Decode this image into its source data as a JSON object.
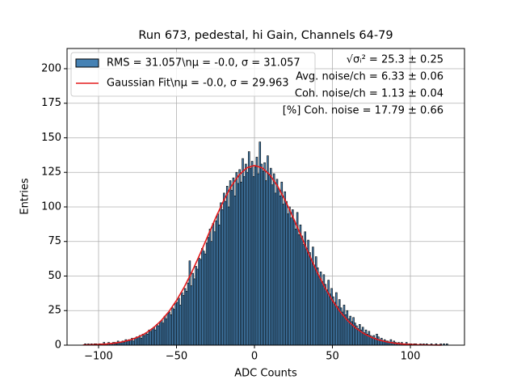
{
  "chart_data": {
    "type": "histogram",
    "title": "Run 673, pedestal, hi Gain, Channels 64-79",
    "xlabel": "ADC Counts",
    "ylabel": "Entries",
    "xlim": [
      -120.2,
      134.7
    ],
    "ylim": [
      0,
      214.6
    ],
    "xticks": [
      {
        "value": -100,
        "label": "−100"
      },
      {
        "value": -50,
        "label": "−50"
      },
      0,
      50,
      100
    ],
    "yticks": [
      0,
      25,
      50,
      75,
      100,
      125,
      150,
      175,
      200
    ],
    "grid": true,
    "legend": "upper left",
    "annotations": [
      "√σᵢ² = 25.3 ± 0.25",
      "Avg. noise/ch = 6.33 ± 0.06",
      "Coh. noise/ch = 1.13 ± 0.04",
      "[%] Coh. noise = 17.79 ± 0.66"
    ],
    "bins": [
      -110,
      -109,
      -108,
      -107,
      -106,
      -105,
      -104,
      -103,
      -102,
      -101,
      -100,
      -99,
      -98,
      -97,
      -96,
      -95,
      -94,
      -93,
      -92,
      -91,
      -90,
      -89,
      -88,
      -87,
      -86,
      -85,
      -84,
      -83,
      -82,
      -81,
      -80,
      -79,
      -78,
      -77,
      -76,
      -75,
      -74,
      -73,
      -72,
      -71,
      -70,
      -69,
      -68,
      -67,
      -66,
      -65,
      -64,
      -63,
      -62,
      -61,
      -60,
      -59,
      -58,
      -57,
      -56,
      -55,
      -54,
      -53,
      -52,
      -51,
      -50,
      -49,
      -48,
      -47,
      -46,
      -45,
      -44,
      -43,
      -42,
      -41,
      -40,
      -39,
      -38,
      -37,
      -36,
      -35,
      -34,
      -33,
      -32,
      -31,
      -30,
      -29,
      -28,
      -27,
      -26,
      -25,
      -24,
      -23,
      -22,
      -21,
      -20,
      -19,
      -18,
      -17,
      -16,
      -15,
      -14,
      -13,
      -12,
      -11,
      -10,
      -9,
      -8,
      -7,
      -6,
      -5,
      -4,
      -3,
      -2,
      -1,
      0,
      1,
      2,
      3,
      4,
      5,
      6,
      7,
      8,
      9,
      10,
      11,
      12,
      13,
      14,
      15,
      16,
      17,
      18,
      19,
      20,
      21,
      22,
      23,
      24,
      25,
      26,
      27,
      28,
      29,
      30,
      31,
      32,
      33,
      34,
      35,
      36,
      37,
      38,
      39,
      40,
      41,
      42,
      43,
      44,
      45,
      46,
      47,
      48,
      49,
      50,
      51,
      52,
      53,
      54,
      55,
      56,
      57,
      58,
      59,
      60,
      61,
      62,
      63,
      64,
      65,
      66,
      67,
      68,
      69,
      70,
      71,
      72,
      73,
      74,
      75,
      76,
      77,
      78,
      79,
      80,
      81,
      82,
      83,
      84,
      85,
      86,
      87,
      88,
      89,
      90,
      91,
      92,
      93,
      94,
      95,
      96,
      97,
      98,
      99,
      100,
      101,
      102,
      103,
      104,
      105,
      106,
      107,
      108,
      109,
      110,
      111,
      112,
      113,
      114,
      115,
      116,
      117,
      118,
      119,
      120,
      121,
      122,
      123,
      124
    ],
    "series": [
      {
        "name": "RMS = 31.057\\nμ = -0.0, σ = 31.057",
        "color": "#4682b4",
        "edgecolor": "#000000",
        "values": [
          0,
          1,
          0,
          1,
          0,
          1,
          0,
          1,
          1,
          0,
          1,
          1,
          0,
          2,
          1,
          1,
          2,
          1,
          1,
          2,
          2,
          1,
          3,
          2,
          2,
          3,
          2,
          4,
          3,
          4,
          4,
          5,
          3,
          5,
          6,
          6,
          7,
          5,
          8,
          7,
          9,
          8,
          11,
          10,
          12,
          13,
          11,
          15,
          14,
          17,
          18,
          16,
          21,
          19,
          23,
          24,
          22,
          27,
          26,
          30,
          31,
          34,
          29,
          38,
          36,
          41,
          39,
          45,
          61,
          43,
          52,
          48,
          57,
          55,
          63,
          62,
          70,
          68,
          66,
          74,
          78,
          84,
          75,
          88,
          82,
          90,
          95,
          87,
          103,
          98,
          110,
          104,
          115,
          100,
          119,
          112,
          121,
          108,
          125,
          117,
          127,
          118,
          135,
          122,
          131,
          125,
          140,
          128,
          133,
          122,
          129,
          136,
          124,
          147,
          131,
          126,
          132,
          119,
          137,
          123,
          128,
          116,
          124,
          110,
          120,
          113,
          108,
          118,
          102,
          111,
          104,
          95,
          100,
          92,
          98,
          90,
          84,
          96,
          80,
          87,
          79,
          73,
          82,
          70,
          76,
          67,
          62,
          71,
          58,
          64,
          56,
          50,
          53,
          46,
          51,
          44,
          40,
          47,
          37,
          41,
          35,
          31,
          38,
          28,
          33,
          27,
          24,
          29,
          22,
          25,
          19,
          21,
          17,
          20,
          16,
          14,
          12,
          15,
          11,
          13,
          9,
          11,
          8,
          10,
          7,
          6,
          7,
          5,
          8,
          6,
          4,
          5,
          3,
          4,
          3,
          3,
          2,
          4,
          2,
          3,
          2,
          1,
          2,
          1,
          2,
          1,
          1,
          2,
          0,
          1,
          1,
          0,
          1,
          1,
          0,
          0,
          1,
          0,
          1,
          0,
          1,
          0,
          0,
          1,
          0,
          0,
          1,
          0,
          0,
          1,
          0,
          1,
          0,
          1
        ]
      },
      {
        "name": "Gaussian Fit\\nμ = -0.0, σ = 29.963",
        "type": "line",
        "color": "#e41a1c",
        "x": [
          -110,
          -105,
          -100,
          -95,
          -90,
          -85,
          -80,
          -75,
          -70,
          -65,
          -60,
          -55,
          -50,
          -45,
          -40,
          -35,
          -30,
          -25,
          -20,
          -15,
          -10,
          -5,
          0,
          5,
          10,
          15,
          20,
          25,
          30,
          35,
          40,
          45,
          50,
          55,
          60,
          65,
          70,
          75,
          80,
          85,
          90,
          95,
          100,
          105,
          110,
          115,
          120
        ],
        "values": [
          0.15,
          0.28,
          0.5,
          0.85,
          1.43,
          2.33,
          3.68,
          5.67,
          8.49,
          12.4,
          17.5,
          24.1,
          32.3,
          42.1,
          53.3,
          65.7,
          78.8,
          91.8,
          104.0,
          114.7,
          123.0,
          128.2,
          130,
          128.2,
          123.0,
          114.7,
          104.0,
          91.8,
          78.8,
          65.7,
          53.3,
          42.1,
          32.3,
          24.1,
          17.5,
          12.4,
          8.49,
          5.67,
          3.68,
          2.33,
          1.43,
          0.85,
          0.5,
          0.28,
          0.15,
          0.08,
          0.04
        ]
      }
    ]
  }
}
